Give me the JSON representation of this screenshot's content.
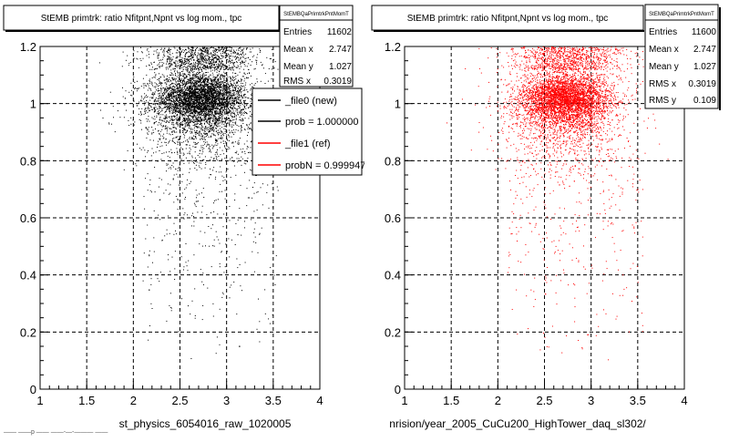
{
  "chart_data": [
    {
      "type": "scatter",
      "title": "StEMB primtrk: ratio Nfitpnt,Npnt vs log mom., tpc",
      "xlim": [
        1,
        4
      ],
      "ylim": [
        0,
        1.2
      ],
      "x_ticks": [
        "1",
        "1.5",
        "2",
        "2.5",
        "3",
        "3.5",
        "4"
      ],
      "y_ticks": [
        "0",
        "0.2",
        "0.4",
        "0.6",
        "0.8",
        "1",
        "1.2"
      ],
      "grid": true,
      "xlabel": "st_physics_6054016_raw_1020005",
      "color": "#000000",
      "points_description": "dense band of points around y = 1.0 for x in 2.1–3.3, sparse points below down to y ≈ 0.1",
      "stats": {
        "header": "StEMBQaPrimtrkPntMomT",
        "entries_label": "Entries",
        "entries": "11602",
        "mean_x_label": "Mean x",
        "mean_x": "2.747",
        "mean_y_label": "Mean y",
        "mean_y": "1.027",
        "rms_x_label": "RMS x",
        "rms_x": "0.3019"
      },
      "legend": [
        {
          "label": "_file0 (new)",
          "color": "#000000"
        },
        {
          "label": "prob = 1.000000",
          "color": "#000000"
        },
        {
          "label": "_file1 (ref)",
          "color": "#ff0000"
        },
        {
          "label": "probN = 0.999947",
          "color": "#ff0000"
        }
      ],
      "footer": "—— ——p —— ——-—-——— ——"
    },
    {
      "type": "scatter",
      "title": "StEMB primtrk: ratio Nfitpnt,Npnt vs log mom., tpc",
      "xlim": [
        1,
        4
      ],
      "ylim": [
        0,
        1.2
      ],
      "x_ticks": [
        "1",
        "1.5",
        "2",
        "2.5",
        "3",
        "3.5",
        "4"
      ],
      "y_ticks": [
        "0",
        "0.2",
        "0.4",
        "0.6",
        "0.8",
        "1",
        "1.2"
      ],
      "grid": true,
      "xlabel": "nrision/year_2005_CuCu200_HighTower_daq_sl302/",
      "color": "#ff0000",
      "points_description": "dense band of points around y = 1.0 for x in 2.1–3.3, sparse points below down to y ≈ 0.1",
      "stats": {
        "header": "StEMBQaPrimtrkPntMomT",
        "entries_label": "Entries",
        "entries": "11600",
        "mean_x_label": "Mean x",
        "mean_x": "2.747",
        "mean_y_label": "Mean y",
        "mean_y": "1.027",
        "rms_x_label": "RMS x",
        "rms_x": "0.3019",
        "rms_y_label": "RMS y",
        "rms_y": "0.109"
      }
    }
  ]
}
